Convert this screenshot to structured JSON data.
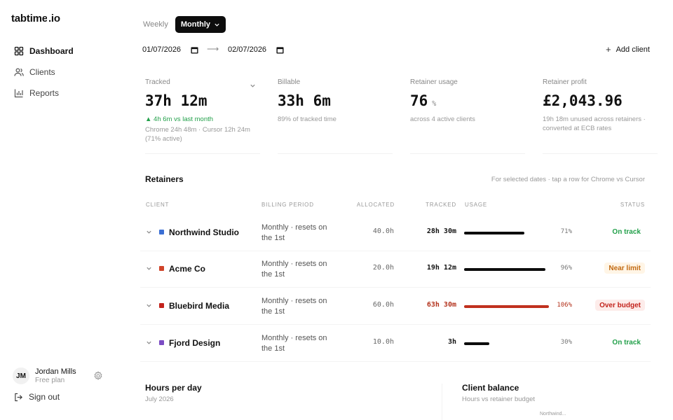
{
  "app": {
    "logo_left": "tabtime",
    "logo_right": "io"
  },
  "sidebar": {
    "items": [
      {
        "label": "Dashboard",
        "icon": "grid-icon",
        "active": true
      },
      {
        "label": "Clients",
        "icon": "users-icon",
        "active": false
      },
      {
        "label": "Reports",
        "icon": "bar-chart-icon",
        "active": false
      }
    ],
    "user": {
      "initials": "JM",
      "name": "Jordan Mills",
      "plan": "Free plan"
    },
    "sign_out": "Sign out"
  },
  "controls": {
    "weekly": "Weekly",
    "monthly": "Monthly",
    "date_from": "01/07/2026",
    "date_to": "02/07/2026",
    "arrow": "⟶",
    "add_client": "Add client"
  },
  "stats": [
    {
      "label": "Tracked",
      "value": "37h 12m",
      "sub_green": "▲ 4h 6m vs last month",
      "sub": "Chrome 24h 48m · Cursor 12h 24m (71% active)"
    },
    {
      "label": "Billable",
      "value": "33h 6m",
      "sub": "89% of tracked time"
    },
    {
      "label": "Retainer usage",
      "value": "76",
      "unit": "%",
      "sub": "across 4 active clients"
    },
    {
      "label": "Retainer profit",
      "value": "£2,043.96",
      "sub": "19h 18m unused across retainers · converted at ECB rates"
    }
  ],
  "retainers": {
    "title": "Retainers",
    "hint": "For selected dates · tap a row for Chrome vs Cursor",
    "headers": {
      "client": "CLIENT",
      "period": "BILLING PERIOD",
      "allocated": "ALLOCATED",
      "tracked": "TRACKED",
      "usage": "USAGE",
      "status": "STATUS"
    },
    "rows": [
      {
        "name": "Northwind Studio",
        "color": "#3b6fd4",
        "period": "Monthly · resets on the 1st",
        "allocated": "40.0h",
        "tracked": "28h 30m",
        "usage": 0.71,
        "usage_label": "71%",
        "status": "On track",
        "status_type": "ok"
      },
      {
        "name": "Acme Co",
        "color": "#d0442a",
        "period": "Monthly · resets on the 1st",
        "allocated": "20.0h",
        "tracked": "19h 12m",
        "usage": 0.96,
        "usage_label": "96%",
        "status": "Near limit",
        "status_type": "warn"
      },
      {
        "name": "Bluebird Media",
        "color": "#c3231c",
        "period": "Monthly · resets on the 1st",
        "allocated": "60.0h",
        "tracked": "63h 30m",
        "usage": 1.06,
        "usage_label": "106%",
        "status": "Over budget",
        "status_type": "over"
      },
      {
        "name": "Fjord Design",
        "color": "#7c4dc4",
        "period": "Monthly · resets on the 1st",
        "allocated": "10.0h",
        "tracked": "3h",
        "usage": 0.3,
        "usage_label": "30%",
        "status": "On track",
        "status_type": "ok"
      }
    ]
  },
  "hours_per_day": {
    "title": "Hours per day",
    "subtitle": "July 2026"
  },
  "client_balance": {
    "title": "Client balance",
    "subtitle": "Hours vs retainer budget",
    "first_label": "Northwind..."
  },
  "colors": {
    "ok_text": "#22a04a",
    "warn_text": "#c26a12",
    "warn_bg": "#fff5e6",
    "over_text": "#c3231c",
    "over_bg": "#fdecea"
  }
}
